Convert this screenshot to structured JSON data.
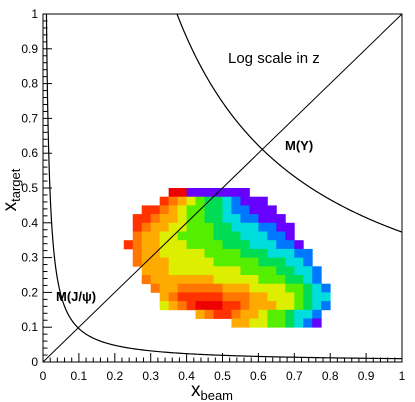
{
  "chart_data": {
    "type": "heatmap",
    "xlabel": "x",
    "xlabel_sub": "beam",
    "ylabel": "x",
    "ylabel_sub": "target",
    "xlim": [
      0,
      1
    ],
    "ylim": [
      0,
      1
    ],
    "x_ticks": [
      "0",
      "0.1",
      "0.2",
      "0.3",
      "0.4",
      "0.5",
      "0.6",
      "0.7",
      "0.8",
      "0.9",
      "1"
    ],
    "y_ticks": [
      "0",
      "0.1",
      "0.2",
      "0.3",
      "0.4",
      "0.5",
      "0.6",
      "0.7",
      "0.8",
      "0.9",
      "1"
    ],
    "z_scale": "log",
    "annotations": {
      "log_scale": "Log scale in z",
      "upsilon": "M(Υ)",
      "jpsi": "M(J/ψ)"
    },
    "curves": [
      {
        "label": "M(J/ψ)",
        "xy_product": 0.0096
      },
      {
        "label": "M(Υ)",
        "xy_product": 0.3733
      }
    ],
    "diagonal": {
      "x": [
        0,
        1
      ],
      "y": [
        0,
        1
      ]
    },
    "bin_width": 0.025,
    "bin_height": 0.025,
    "heatmap_rows": [
      {
        "y": 0.475,
        "x0": 0.35,
        "levels": [
          0,
          0,
          9,
          9,
          9,
          9,
          9,
          9,
          9
        ]
      },
      {
        "y": 0.45,
        "x0": 0.325,
        "levels": [
          1,
          2,
          3,
          4,
          5,
          6,
          6,
          7,
          8,
          9,
          9,
          9
        ]
      },
      {
        "y": 0.425,
        "x0": 0.275,
        "levels": [
          1,
          1,
          2,
          3,
          4,
          5,
          5,
          6,
          6,
          7,
          8,
          8,
          9,
          9,
          9
        ]
      },
      {
        "y": 0.4,
        "x0": 0.25,
        "levels": [
          1,
          1,
          2,
          3,
          3,
          4,
          5,
          5,
          6,
          6,
          7,
          7,
          8,
          8,
          9,
          9,
          9
        ]
      },
      {
        "y": 0.375,
        "x0": 0.25,
        "levels": [
          1,
          2,
          3,
          3,
          4,
          4,
          5,
          5,
          5,
          6,
          6,
          7,
          7,
          7,
          8,
          8,
          9,
          9
        ]
      },
      {
        "y": 0.35,
        "x0": 0.25,
        "levels": [
          2,
          3,
          3,
          4,
          4,
          5,
          5,
          5,
          5,
          6,
          6,
          6,
          7,
          7,
          7,
          8,
          8,
          9
        ]
      },
      {
        "y": 0.325,
        "x0": 0.225,
        "levels": [
          1,
          2,
          3,
          3,
          4,
          4,
          4,
          5,
          5,
          5,
          5,
          6,
          6,
          6,
          7,
          7,
          7,
          8,
          8,
          9
        ]
      },
      {
        "y": 0.3,
        "x0": 0.25,
        "levels": [
          2,
          3,
          3,
          4,
          4,
          4,
          4,
          4,
          5,
          5,
          5,
          5,
          6,
          6,
          6,
          7,
          7,
          7,
          8,
          8
        ]
      },
      {
        "y": 0.275,
        "x0": 0.25,
        "levels": [
          2,
          3,
          3,
          3,
          4,
          4,
          4,
          4,
          4,
          5,
          5,
          5,
          5,
          5,
          6,
          6,
          6,
          7,
          7,
          8
        ]
      },
      {
        "y": 0.25,
        "x0": 0.275,
        "levels": [
          3,
          3,
          3,
          4,
          4,
          4,
          4,
          4,
          4,
          4,
          4,
          5,
          5,
          5,
          5,
          6,
          6,
          7,
          7,
          8
        ]
      },
      {
        "y": 0.225,
        "x0": 0.275,
        "levels": [
          2,
          3,
          3,
          3,
          3,
          3,
          3,
          3,
          4,
          4,
          4,
          4,
          4,
          5,
          5,
          5,
          6,
          6,
          7,
          8
        ]
      },
      {
        "y": 0.2,
        "x0": 0.3,
        "levels": [
          2,
          3,
          3,
          2,
          2,
          2,
          2,
          2,
          3,
          3,
          3,
          4,
          4,
          4,
          4,
          5,
          5,
          6,
          7,
          8
        ]
      },
      {
        "y": 0.175,
        "x0": 0.325,
        "levels": [
          3,
          2,
          1,
          1,
          1,
          1,
          1,
          2,
          2,
          2,
          3,
          3,
          4,
          4,
          4,
          5,
          6,
          7,
          7
        ]
      },
      {
        "y": 0.15,
        "x0": 0.325,
        "levels": [
          4,
          3,
          2,
          1,
          0,
          0,
          0,
          1,
          1,
          2,
          3,
          3,
          3,
          4,
          4,
          5,
          6,
          7,
          8
        ]
      },
      {
        "y": 0.125,
        "x0": 0.425,
        "levels": [
          3,
          2,
          1,
          1,
          2,
          3,
          3,
          4,
          5,
          5,
          6,
          7,
          7,
          8
        ]
      },
      {
        "y": 0.1,
        "x0": 0.525,
        "levels": [
          3,
          3,
          4,
          4,
          5,
          5,
          6,
          7,
          8,
          9
        ]
      }
    ],
    "colors": [
      "#ee0000",
      "#ff3300",
      "#ff7700",
      "#ffaa00",
      "#ddee00",
      "#55ee00",
      "#00dd55",
      "#00dddd",
      "#0077ff",
      "#6600ff"
    ]
  }
}
